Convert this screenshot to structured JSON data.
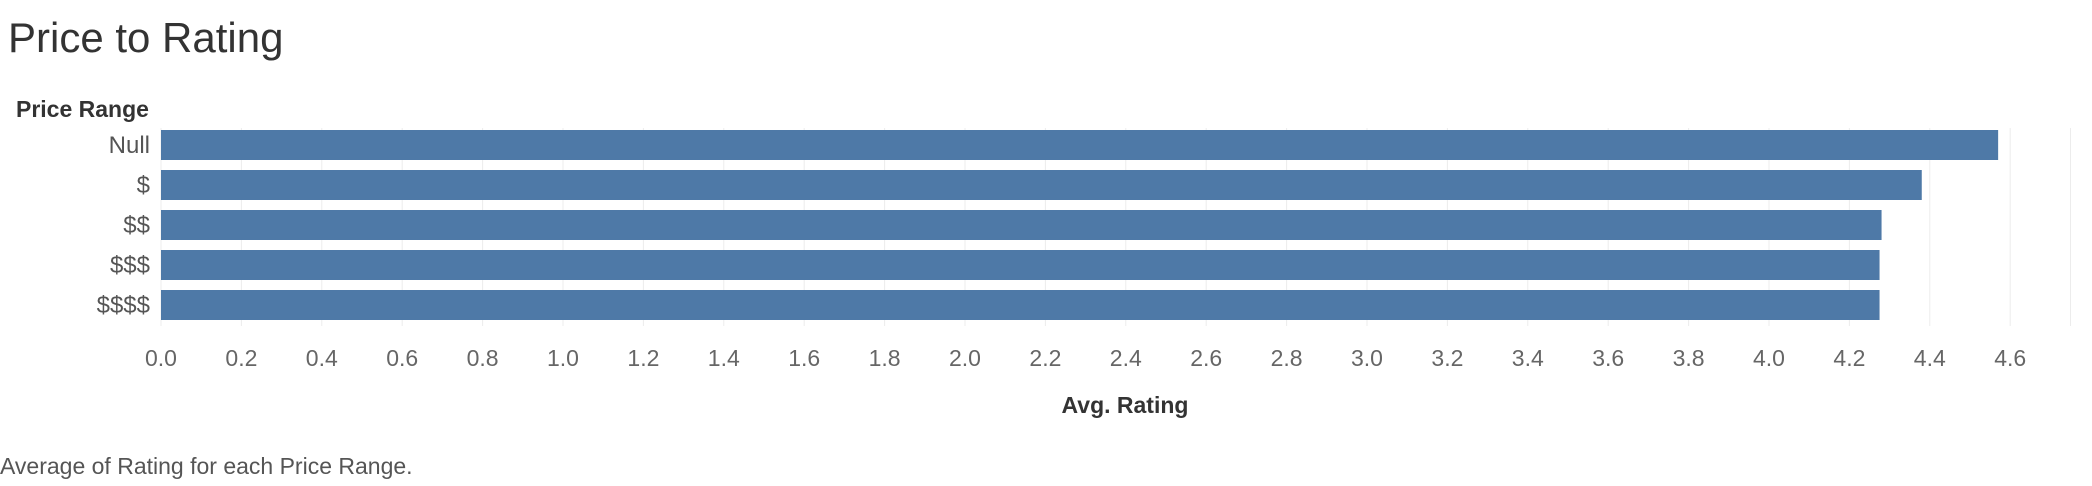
{
  "chart_data": {
    "type": "bar",
    "orientation": "horizontal",
    "title": "Price to Rating",
    "row_header": "Price Range",
    "categories": [
      "Null",
      "$",
      "$$",
      "$$$",
      "$$$$"
    ],
    "values": [
      4.57,
      4.38,
      4.28,
      4.275,
      4.275
    ],
    "xlabel": "Avg. Rating",
    "xlim": [
      0,
      4.75
    ],
    "xticks": [
      "0.0",
      "0.2",
      "0.4",
      "0.6",
      "0.8",
      "1.0",
      "1.2",
      "1.4",
      "1.6",
      "1.8",
      "2.0",
      "2.2",
      "2.4",
      "2.6",
      "2.8",
      "3.0",
      "3.2",
      "3.4",
      "3.6",
      "3.8",
      "4.0",
      "4.2",
      "4.4",
      "4.6"
    ],
    "grid": true,
    "bar_color": "#4e79a7",
    "caption": "Average of Rating for each Price Range."
  }
}
